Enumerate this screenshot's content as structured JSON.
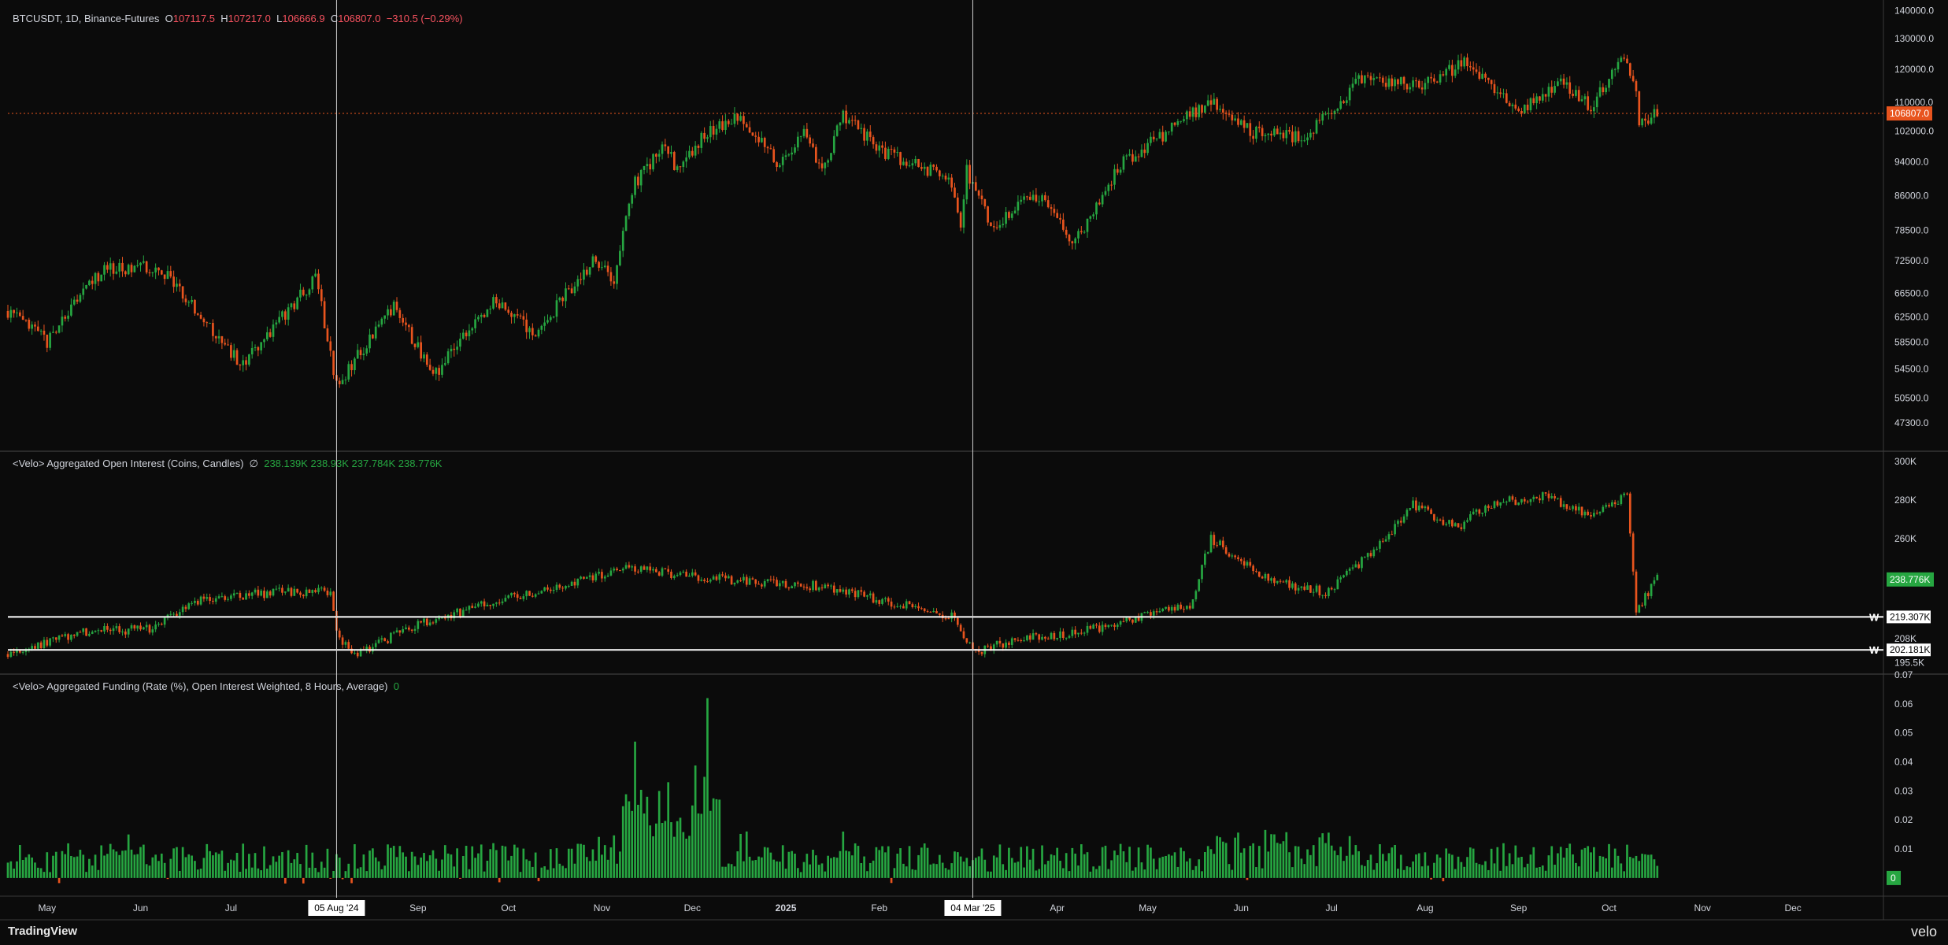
{
  "legend_price": {
    "symbol": "BTCUSDT, 1D, Binance-Futures",
    "o_label": "O",
    "o": "107117.5",
    "h_label": "H",
    "h": "107217.0",
    "l_label": "L",
    "l": "106666.9",
    "c_label": "C",
    "c": "106807.0",
    "chg": "−310.5 (−0.29%)"
  },
  "legend_oi": {
    "title": "<Velo> Aggregated Open Interest (Coins, Candles)",
    "symbol": "∅",
    "values": "238.139K  238.93K  237.784K  238.776K"
  },
  "legend_funding": {
    "title": "<Velo> Aggregated Funding (Rate (%), Open Interest Weighted, 8 Hours, Average)",
    "value": "0"
  },
  "footer": {
    "brand": "TradingView",
    "watermark": "velo"
  },
  "colors": {
    "up": "#26a641",
    "down": "#e8541e",
    "bg": "#0b0b0b",
    "grid": "#1e1e1e",
    "price_tag": "#e8541e",
    "oi_tag": "#26a641",
    "funding_tag": "#26a641"
  },
  "chart_data": [
    {
      "type": "candlestick",
      "title": "BTCUSDT, 1D, Binance-Futures",
      "y_scale": "log",
      "ylim": [
        44000,
        141000
      ],
      "y_ticks": [
        "140000.0",
        "130000.0",
        "120000.0",
        "110000.0",
        "102000.0",
        "94000.0",
        "86000.0",
        "78500.0",
        "72500.0",
        "66500.0",
        "62500.0",
        "58500.0",
        "54500.0",
        "50500.0",
        "47300.0"
      ],
      "last_price_label": "106807.0",
      "last_price": 106807.0,
      "x_start": "2024-04-18",
      "x_end": "2025-12-31",
      "key_points": [
        [
          "2024-04-18",
          63500
        ],
        [
          "2024-05-01",
          58500
        ],
        [
          "2024-05-20",
          71000
        ],
        [
          "2024-06-07",
          71500
        ],
        [
          "2024-06-24",
          60500
        ],
        [
          "2024-07-05",
          55000
        ],
        [
          "2024-07-29",
          69000
        ],
        [
          "2024-08-05",
          52000
        ],
        [
          "2024-08-24",
          64000
        ],
        [
          "2024-09-06",
          53500
        ],
        [
          "2024-09-27",
          65500
        ],
        [
          "2024-10-10",
          59500
        ],
        [
          "2024-10-29",
          72500
        ],
        [
          "2024-11-05",
          69000
        ],
        [
          "2024-11-12",
          89000
        ],
        [
          "2024-11-22",
          98500
        ],
        [
          "2024-11-26",
          92000
        ],
        [
          "2024-12-05",
          101000
        ],
        [
          "2024-12-17",
          106500
        ],
        [
          "2024-12-30",
          92500
        ],
        [
          "2025-01-07",
          102500
        ],
        [
          "2025-01-13",
          91000
        ],
        [
          "2025-01-20",
          106000
        ],
        [
          "2025-01-27",
          101000
        ],
        [
          "2025-02-01",
          97000
        ],
        [
          "2025-02-24",
          90000
        ],
        [
          "2025-02-28",
          80000
        ],
        [
          "2025-03-02",
          92000
        ],
        [
          "2025-03-10",
          79000
        ],
        [
          "2025-03-24",
          87000
        ],
        [
          "2025-04-07",
          76000
        ],
        [
          "2025-04-22",
          93500
        ],
        [
          "2025-05-08",
          102000
        ],
        [
          "2025-05-22",
          110500
        ],
        [
          "2025-06-05",
          101500
        ],
        [
          "2025-06-22",
          100500
        ],
        [
          "2025-07-02",
          108000
        ],
        [
          "2025-07-11",
          117500
        ],
        [
          "2025-07-31",
          115000
        ],
        [
          "2025-08-14",
          122000
        ],
        [
          "2025-09-01",
          108000
        ],
        [
          "2025-09-15",
          115500
        ],
        [
          "2025-09-25",
          109000
        ],
        [
          "2025-10-06",
          124500
        ],
        [
          "2025-10-10",
          112000
        ],
        [
          "2025-10-11",
          104500
        ],
        [
          "2025-10-17",
          106807
        ]
      ]
    },
    {
      "type": "candlestick",
      "title": "<Velo> Aggregated Open Interest (Coins, Candles)",
      "unit": "K",
      "ylim": [
        190,
        305
      ],
      "y_ticks": [
        "300K",
        "280K",
        "260K",
        "208K",
        "195.5K"
      ],
      "last_value_label": "238.776K",
      "last_value": 238.776,
      "levels": [
        {
          "value": 219.307,
          "label": "219.307K",
          "marker": "W"
        },
        {
          "value": 202.181,
          "label": "202.181K",
          "marker": "W"
        }
      ],
      "key_points": [
        [
          "2024-04-18",
          200
        ],
        [
          "2024-05-15",
          212
        ],
        [
          "2024-06-05",
          213
        ],
        [
          "2024-06-20",
          228
        ],
        [
          "2024-07-15",
          232
        ],
        [
          "2024-08-03",
          233
        ],
        [
          "2024-08-05",
          210
        ],
        [
          "2024-08-12",
          200
        ],
        [
          "2024-09-01",
          216
        ],
        [
          "2024-10-01",
          229
        ],
        [
          "2024-11-12",
          245
        ],
        [
          "2024-12-01",
          240
        ],
        [
          "2024-12-20",
          238
        ],
        [
          "2025-01-15",
          235
        ],
        [
          "2025-02-01",
          228
        ],
        [
          "2025-02-25",
          220
        ],
        [
          "2025-03-04",
          201
        ],
        [
          "2025-03-20",
          208
        ],
        [
          "2025-04-10",
          212
        ],
        [
          "2025-04-25",
          218
        ],
        [
          "2025-05-15",
          225
        ],
        [
          "2025-05-22",
          260
        ],
        [
          "2025-06-10",
          238
        ],
        [
          "2025-06-30",
          232
        ],
        [
          "2025-07-20",
          262
        ],
        [
          "2025-07-28",
          278
        ],
        [
          "2025-08-12",
          265
        ],
        [
          "2025-08-22",
          278
        ],
        [
          "2025-09-10",
          282
        ],
        [
          "2025-09-25",
          272
        ],
        [
          "2025-10-07",
          283
        ],
        [
          "2025-10-10",
          222
        ],
        [
          "2025-10-17",
          238.776
        ]
      ]
    },
    {
      "type": "bar",
      "title": "<Velo> Aggregated Funding (Rate (%), Open Interest Weighted, 8 Hours, Average)",
      "ylim": [
        -0.006,
        0.07
      ],
      "y_ticks": [
        "0.07",
        "0.06",
        "0.05",
        "0.04",
        "0.03",
        "0.02",
        "0.01",
        "0"
      ],
      "last_value_label": "0",
      "last_value": 0,
      "spikes": [
        [
          "2024-11-12",
          0.047
        ],
        [
          "2024-11-20",
          0.03
        ],
        [
          "2024-11-23",
          0.033
        ],
        [
          "2024-12-06",
          0.062
        ],
        [
          "2024-12-01",
          0.025
        ],
        [
          "2025-01-20",
          0.016
        ],
        [
          "2024-05-28",
          0.015
        ]
      ],
      "baseline_range": [
        0.002,
        0.012
      ]
    }
  ],
  "x_axis": {
    "labels": [
      {
        "date": "2024-05-01",
        "text": "May"
      },
      {
        "date": "2024-06-01",
        "text": "Jun"
      },
      {
        "date": "2024-07-01",
        "text": "Jul"
      },
      {
        "date": "2024-09-01",
        "text": "Sep"
      },
      {
        "date": "2024-10-01",
        "text": "Oct"
      },
      {
        "date": "2024-11-01",
        "text": "Nov"
      },
      {
        "date": "2024-12-01",
        "text": "Dec"
      },
      {
        "date": "2025-01-01",
        "text": "2025",
        "bold": true
      },
      {
        "date": "2025-02-01",
        "text": "Feb"
      },
      {
        "date": "2025-04-01",
        "text": "Apr"
      },
      {
        "date": "2025-05-01",
        "text": "May"
      },
      {
        "date": "2025-06-01",
        "text": "Jun"
      },
      {
        "date": "2025-07-01",
        "text": "Jul"
      },
      {
        "date": "2025-08-01",
        "text": "Aug"
      },
      {
        "date": "2025-09-01",
        "text": "Sep"
      },
      {
        "date": "2025-10-01",
        "text": "Oct"
      },
      {
        "date": "2025-11-01",
        "text": "Nov"
      },
      {
        "date": "2025-12-01",
        "text": "Dec"
      }
    ],
    "markers": [
      {
        "date": "2024-08-05",
        "label": "05 Aug '24"
      },
      {
        "date": "2025-03-04",
        "label": "04 Mar '25"
      }
    ]
  }
}
